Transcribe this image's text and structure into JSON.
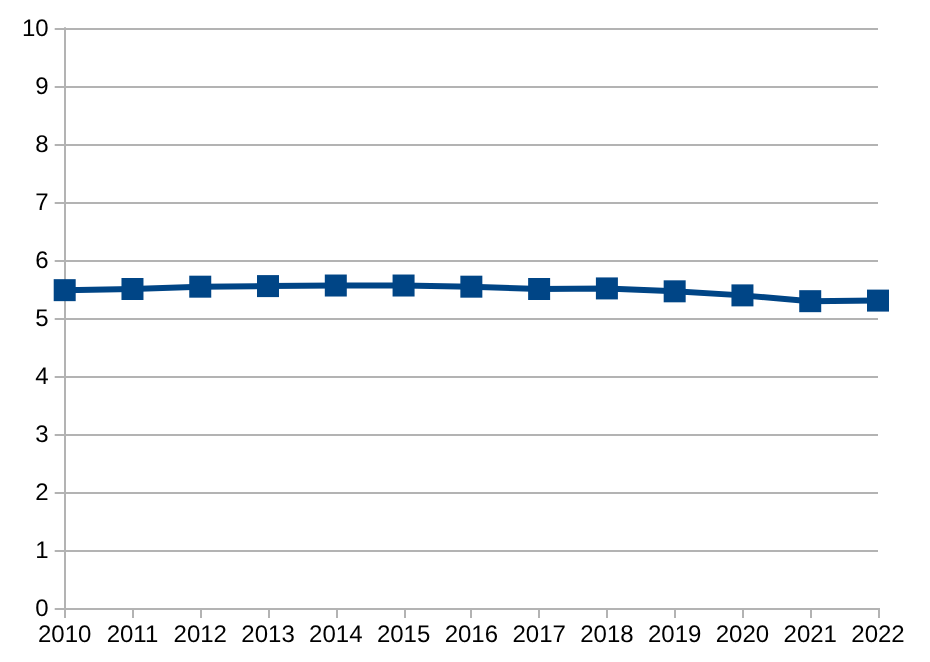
{
  "chart_data": {
    "type": "line",
    "categories": [
      "2010",
      "2011",
      "2012",
      "2013",
      "2014",
      "2015",
      "2016",
      "2017",
      "2018",
      "2019",
      "2020",
      "2021",
      "2022"
    ],
    "series": [
      {
        "color": "#004586",
        "values": [
          5.48,
          5.5,
          5.54,
          5.55,
          5.56,
          5.56,
          5.54,
          5.5,
          5.51,
          5.46,
          5.39,
          5.29,
          5.3
        ]
      }
    ],
    "ylim": [
      0,
      10
    ],
    "yticks": [
      0,
      1,
      2,
      3,
      4,
      5,
      6,
      7,
      8,
      9,
      10
    ],
    "grid": "y",
    "marker": "square",
    "line_style": "solid"
  }
}
